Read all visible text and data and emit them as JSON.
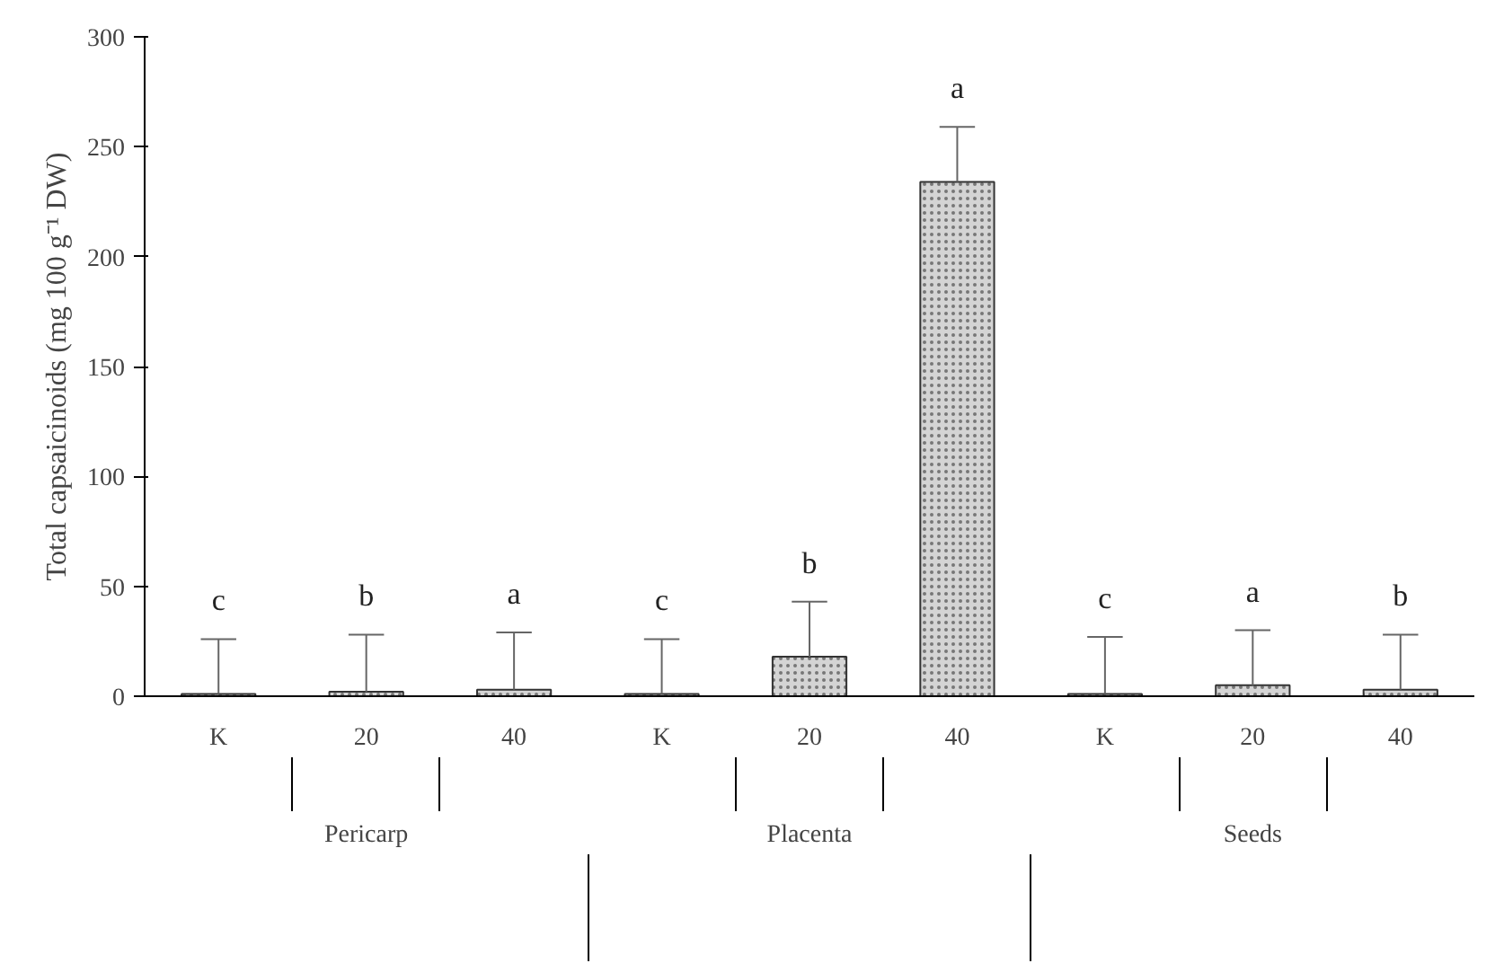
{
  "chart_data": {
    "type": "bar",
    "ylabel": "Total capsaicinoids (mg 100 g⁻¹ DW)",
    "categories": [
      "K",
      "20",
      "40",
      "K",
      "20",
      "40",
      "K",
      "20",
      "40"
    ],
    "values": [
      1,
      2,
      3,
      1,
      18,
      234,
      1,
      5,
      3
    ],
    "errors": [
      [
        1,
        26
      ],
      [
        2,
        28
      ],
      [
        3,
        29
      ],
      [
        1,
        26
      ],
      [
        18,
        43
      ],
      [
        234,
        259
      ],
      [
        1,
        27
      ],
      [
        5,
        30
      ],
      [
        3,
        28
      ]
    ],
    "value_labels": [
      "c",
      "b",
      "a",
      "c",
      "b",
      "a",
      "c",
      "a",
      "b"
    ],
    "color": "#d4d4d4",
    "ylim": [
      0,
      300
    ],
    "yticks": [
      0,
      50,
      100,
      150,
      200,
      250,
      300
    ],
    "grid": false,
    "annotations": [
      "Pericarp",
      "Placenta",
      "Seeds"
    ]
  }
}
